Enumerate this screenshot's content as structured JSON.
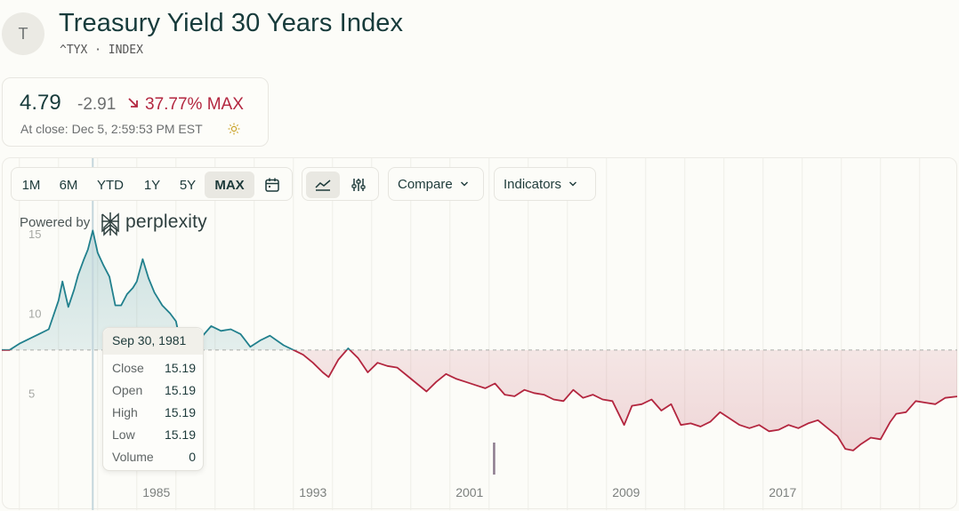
{
  "header": {
    "avatar_letter": "T",
    "title": "Treasury Yield 30 Years Index",
    "subtitle": "^TYX · INDEX"
  },
  "quote": {
    "price": "4.79",
    "change": "-2.91",
    "change_pct": "37.77%",
    "range_label": "MAX",
    "close_time": "At close: Dec 5, 2:59:53 PM EST",
    "colors": {
      "down": "#b3263f"
    }
  },
  "toolbar": {
    "ranges": [
      "1M",
      "6M",
      "YTD",
      "1Y",
      "5Y",
      "MAX"
    ],
    "active_range": "MAX",
    "compare_label": "Compare",
    "indicators_label": "Indicators",
    "icons": [
      "calendar-icon",
      "line-chart-icon",
      "sliders-icon",
      "chevron-down-icon"
    ]
  },
  "branding": {
    "powered_by": "Powered by",
    "brand": "perplexity"
  },
  "tooltip": {
    "date": "Sep 30, 1981",
    "rows": [
      {
        "label": "Close",
        "value": "15.19"
      },
      {
        "label": "Open",
        "value": "15.19"
      },
      {
        "label": "High",
        "value": "15.19"
      },
      {
        "label": "Low",
        "value": "15.19"
      },
      {
        "label": "Volume",
        "value": "0"
      }
    ]
  },
  "chart_data": {
    "type": "line",
    "ylim": [
      0,
      17.5
    ],
    "xlim": [
      1977.1,
      2025.92
    ],
    "yticks": [
      5,
      10,
      15
    ],
    "xticks": [
      1985,
      1993,
      2001,
      2009,
      2017
    ],
    "reference_value": 7.7,
    "crosshair_x": 1981.75,
    "colors": {
      "above": "#21808d",
      "below": "#b3263f"
    },
    "series": [
      {
        "x": [
          1977.1,
          1977.5,
          1978.0,
          1978.5,
          1979.0,
          1979.5,
          1980.0,
          1980.2,
          1980.5,
          1980.8,
          1981.0,
          1981.3,
          1981.5,
          1981.75,
          1982.0,
          1982.3,
          1982.6,
          1982.9,
          1983.2,
          1983.5,
          1983.8,
          1984.0,
          1984.3,
          1984.6,
          1984.9,
          1985.3,
          1985.7,
          1986.0,
          1986.3,
          1986.7,
          1987.0,
          1987.3,
          1987.8,
          1988.3,
          1988.8,
          1989.3,
          1989.8,
          1990.3,
          1990.8,
          1991.5,
          1992.0,
          1992.5,
          1993.0,
          1993.5,
          1993.8,
          1994.3,
          1994.8,
          1995.3,
          1995.8,
          1996.3,
          1996.8,
          1997.3,
          1997.8,
          1998.3,
          1998.8,
          1999.3,
          1999.8,
          2000.3,
          2000.8,
          2001.3,
          2001.8,
          2002.3,
          2002.8,
          2003.3,
          2003.8,
          2004.3,
          2004.8,
          2005.3,
          2005.8,
          2006.3,
          2006.8,
          2007.3,
          2007.8,
          2008.3,
          2008.9,
          2009.3,
          2009.8,
          2010.3,
          2010.8,
          2011.3,
          2011.8,
          2012.3,
          2012.8,
          2013.3,
          2013.8,
          2014.3,
          2014.8,
          2015.3,
          2015.8,
          2016.3,
          2016.8,
          2017.3,
          2017.8,
          2018.3,
          2018.8,
          2019.3,
          2019.8,
          2020.2,
          2020.6,
          2021.0,
          2021.5,
          2022.0,
          2022.5,
          2022.8,
          2023.3,
          2023.8,
          2024.3,
          2024.8,
          2025.3,
          2025.92
        ],
        "values": [
          7.7,
          7.7,
          8.1,
          8.4,
          8.7,
          9.0,
          10.8,
          12.0,
          10.4,
          11.5,
          12.4,
          13.4,
          14.0,
          15.19,
          13.8,
          13.0,
          12.3,
          10.5,
          10.5,
          11.2,
          11.6,
          12.0,
          13.4,
          12.2,
          11.3,
          10.5,
          10.0,
          9.5,
          7.8,
          7.3,
          7.6,
          8.5,
          9.2,
          8.9,
          9.0,
          8.7,
          7.9,
          8.3,
          8.6,
          8.0,
          7.7,
          7.4,
          6.9,
          6.3,
          6.0,
          7.1,
          7.8,
          7.2,
          6.3,
          6.9,
          6.7,
          6.6,
          6.1,
          5.6,
          5.1,
          5.7,
          6.2,
          5.9,
          5.7,
          5.5,
          5.3,
          5.6,
          4.9,
          4.8,
          5.2,
          5.0,
          4.9,
          4.6,
          4.5,
          5.2,
          4.7,
          4.9,
          4.6,
          4.5,
          3.0,
          4.2,
          4.3,
          4.6,
          3.9,
          4.3,
          3.0,
          3.1,
          2.9,
          3.2,
          3.8,
          3.4,
          3.0,
          2.8,
          3.0,
          2.6,
          2.7,
          3.0,
          2.8,
          3.1,
          3.3,
          2.8,
          2.3,
          1.5,
          1.4,
          1.8,
          2.2,
          2.1,
          3.2,
          3.7,
          3.8,
          4.5,
          4.4,
          4.3,
          4.7,
          4.79
        ]
      }
    ]
  }
}
